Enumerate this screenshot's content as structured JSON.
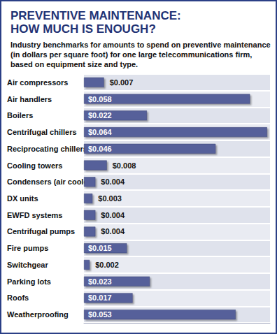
{
  "chart_data": {
    "type": "bar",
    "title": "PREVENTIVE MAINTENANCE:\nHOW MUCH IS ENOUGH?",
    "subtitle": "Industry benchmarks for amounts to spend on preventive maintenance (in dollars per square foot) for one large telecommunications firm, based on equipment size and type.",
    "categories": [
      "Air compressors",
      "Air handlers",
      "Boilers",
      "Centrifugal chillers",
      "Reciprocating chillers",
      "Cooling towers",
      "Condensers (air cooled)",
      "DX units",
      "EWFD systems",
      "Centrifugal pumps",
      "Fire pumps",
      "Switchgear",
      "Parking lots",
      "Roofs",
      "Weatherproofing"
    ],
    "values": [
      0.007,
      0.058,
      0.022,
      0.064,
      0.046,
      0.008,
      0.004,
      0.003,
      0.004,
      0.004,
      0.015,
      0.002,
      0.023,
      0.017,
      0.053
    ],
    "value_labels": [
      "$0.007",
      "$0.058",
      "$0.022",
      "$0.064",
      "$0.046",
      "$0.008",
      "$0.004",
      "$0.003",
      "$0.004",
      "$0.004",
      "$0.015",
      "$0.002",
      "$0.023",
      "$0.017",
      "$0.053"
    ],
    "color": "#56609a",
    "orientation": "horizontal",
    "xlim": [
      0,
      0.065
    ],
    "tick_labels": false,
    "data_labels": true,
    "grid": false
  }
}
